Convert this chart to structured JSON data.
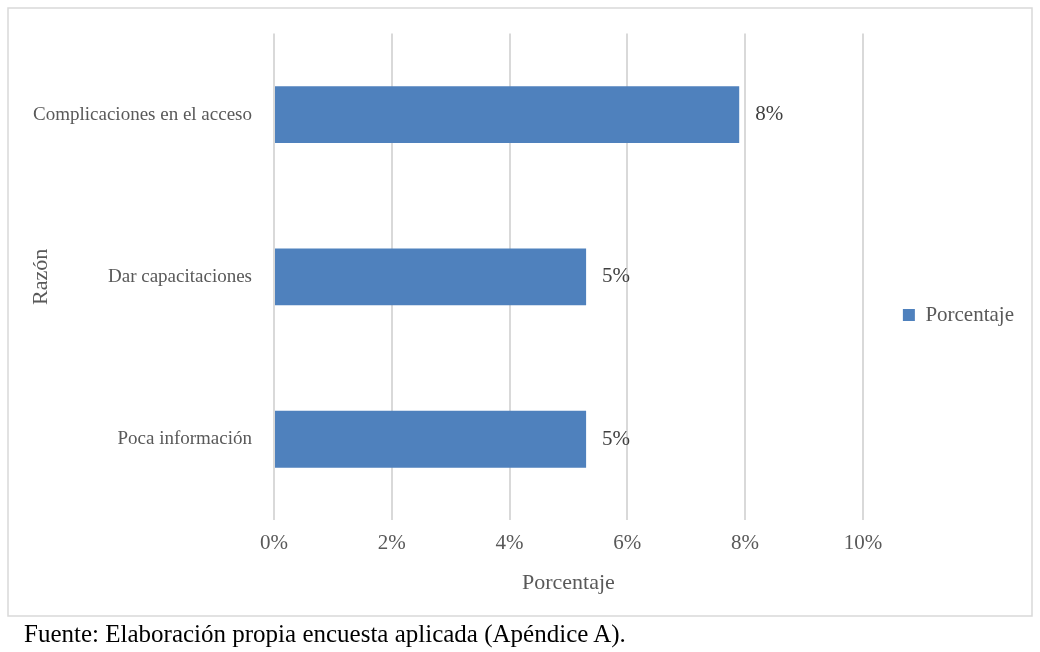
{
  "chart_data": {
    "type": "bar",
    "orientation": "horizontal",
    "xlabel": "Porcentaje",
    "ylabel": "Razón",
    "categories": [
      "Complicaciones en el acceso",
      "Dar capacitaciones",
      "Poca información"
    ],
    "series": [
      {
        "name": "Porcentaje",
        "color": "#4f81bd",
        "values": [
          7.9,
          5.3,
          5.3
        ],
        "value_labels": [
          "8%",
          "5%",
          "5%"
        ]
      }
    ],
    "xlim": [
      0,
      10
    ],
    "xticks": [
      {
        "value": 0,
        "label": "0%"
      },
      {
        "value": 2,
        "label": "2%"
      },
      {
        "value": 4,
        "label": "4%"
      },
      {
        "value": 6,
        "label": "6%"
      },
      {
        "value": 8,
        "label": "8%"
      },
      {
        "value": 10,
        "label": "10%"
      }
    ],
    "grid": "x",
    "legend": "right",
    "annotations": [
      "Fuente: Elaboración propia encuesta aplicada (Apéndice A)."
    ]
  }
}
